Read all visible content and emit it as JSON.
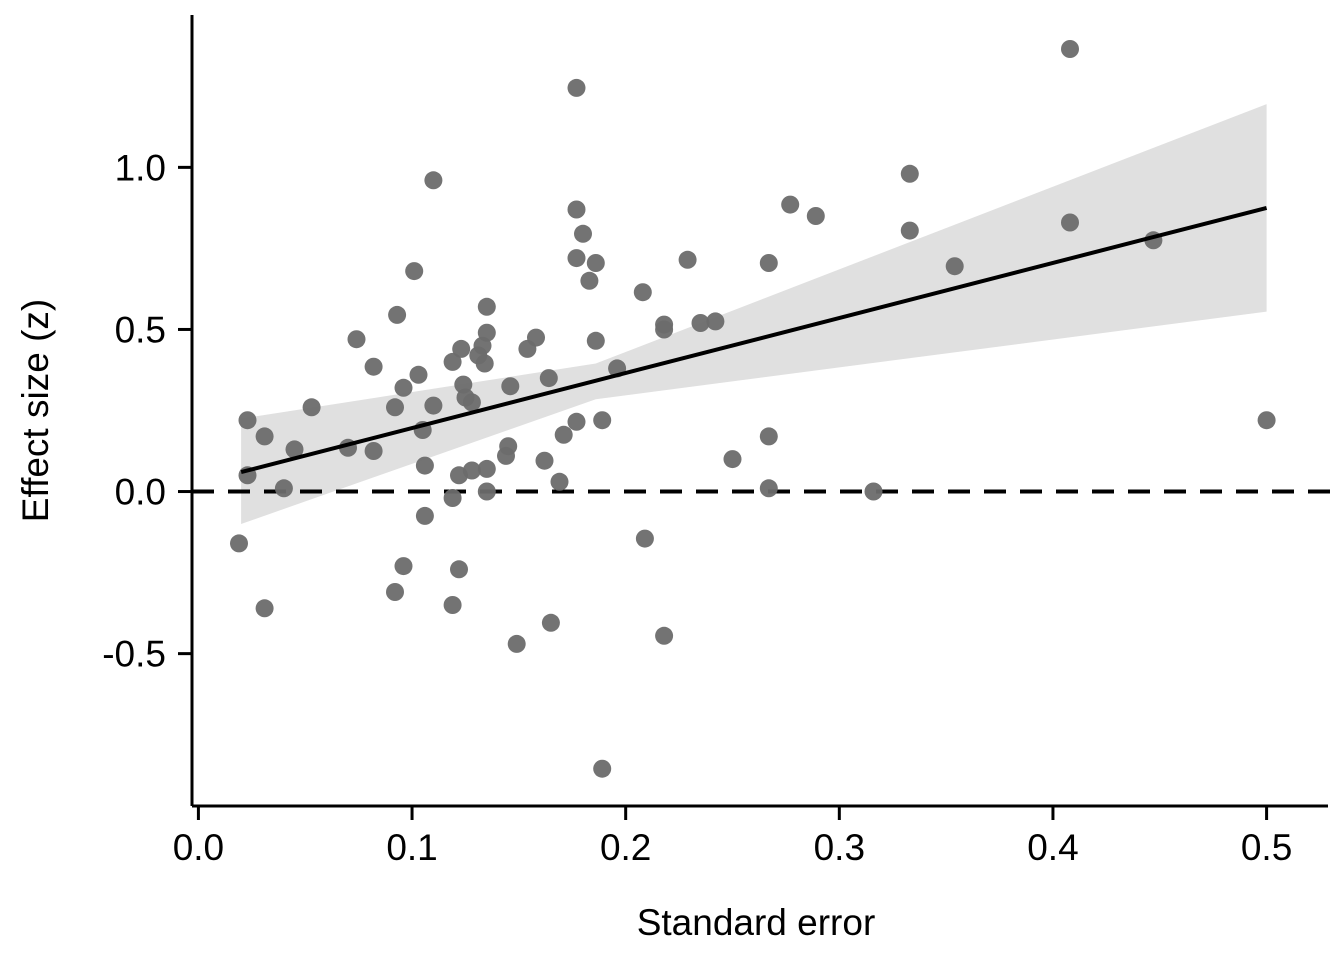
{
  "chart_data": {
    "type": "scatter",
    "title": "",
    "xlabel": "Standard error",
    "ylabel": "Effect size (z)",
    "xlim": [
      -0.003,
      0.525
    ],
    "ylim": [
      -0.97,
      1.47
    ],
    "xticks": [
      {
        "value": 0.0,
        "label": "0.0"
      },
      {
        "value": 0.1,
        "label": "0.1"
      },
      {
        "value": 0.2,
        "label": "0.2"
      },
      {
        "value": 0.3,
        "label": "0.3"
      },
      {
        "value": 0.4,
        "label": "0.4"
      },
      {
        "value": 0.5,
        "label": "0.5"
      }
    ],
    "yticks": [
      {
        "value": -0.5,
        "label": "-0.5"
      },
      {
        "value": 0.0,
        "label": "0.0"
      },
      {
        "value": 0.5,
        "label": "0.5"
      },
      {
        "value": 1.0,
        "label": "1.0"
      }
    ],
    "grid": false,
    "reference_line": {
      "y": 0.0,
      "style": "dashed",
      "color": "#000000"
    },
    "regression_line": {
      "x": [
        0.02,
        0.5
      ],
      "y": [
        0.06,
        0.875
      ],
      "color": "#000000"
    },
    "confidence_band": {
      "color": "#e0e0e0",
      "x": [
        0.02,
        0.5
      ],
      "lower": [
        -0.1,
        0.555
      ],
      "upper": [
        0.225,
        1.195
      ],
      "x_mid": 0.186,
      "lower_mid": 0.285,
      "upper_mid": 0.395
    },
    "point_color": "#6b6b6b",
    "points": [
      {
        "x": 0.019,
        "y": -0.16
      },
      {
        "x": 0.023,
        "y": 0.22
      },
      {
        "x": 0.023,
        "y": 0.05
      },
      {
        "x": 0.031,
        "y": 0.17
      },
      {
        "x": 0.031,
        "y": -0.36
      },
      {
        "x": 0.04,
        "y": 0.01
      },
      {
        "x": 0.045,
        "y": 0.13
      },
      {
        "x": 0.053,
        "y": 0.26
      },
      {
        "x": 0.07,
        "y": 0.135
      },
      {
        "x": 0.074,
        "y": 0.47
      },
      {
        "x": 0.082,
        "y": 0.125
      },
      {
        "x": 0.082,
        "y": 0.385
      },
      {
        "x": 0.092,
        "y": 0.26
      },
      {
        "x": 0.093,
        "y": 0.545
      },
      {
        "x": 0.092,
        "y": -0.31
      },
      {
        "x": 0.096,
        "y": 0.32
      },
      {
        "x": 0.096,
        "y": -0.23
      },
      {
        "x": 0.101,
        "y": 0.68
      },
      {
        "x": 0.103,
        "y": 0.36
      },
      {
        "x": 0.105,
        "y": 0.19
      },
      {
        "x": 0.106,
        "y": 0.08
      },
      {
        "x": 0.106,
        "y": -0.075
      },
      {
        "x": 0.11,
        "y": 0.265
      },
      {
        "x": 0.11,
        "y": 0.96
      },
      {
        "x": 0.119,
        "y": 0.4
      },
      {
        "x": 0.119,
        "y": -0.02
      },
      {
        "x": 0.119,
        "y": -0.35
      },
      {
        "x": 0.122,
        "y": 0.05
      },
      {
        "x": 0.122,
        "y": -0.24
      },
      {
        "x": 0.123,
        "y": 0.44
      },
      {
        "x": 0.124,
        "y": 0.33
      },
      {
        "x": 0.125,
        "y": 0.29
      },
      {
        "x": 0.128,
        "y": 0.275
      },
      {
        "x": 0.128,
        "y": 0.065
      },
      {
        "x": 0.131,
        "y": 0.42
      },
      {
        "x": 0.133,
        "y": 0.45
      },
      {
        "x": 0.134,
        "y": 0.395
      },
      {
        "x": 0.135,
        "y": 0.57
      },
      {
        "x": 0.135,
        "y": 0.49
      },
      {
        "x": 0.135,
        "y": 0.07
      },
      {
        "x": 0.135,
        "y": 0.0
      },
      {
        "x": 0.144,
        "y": 0.11
      },
      {
        "x": 0.145,
        "y": 0.14
      },
      {
        "x": 0.146,
        "y": 0.325
      },
      {
        "x": 0.149,
        "y": -0.47
      },
      {
        "x": 0.154,
        "y": 0.44
      },
      {
        "x": 0.158,
        "y": 0.475
      },
      {
        "x": 0.162,
        "y": 0.095
      },
      {
        "x": 0.164,
        "y": 0.35
      },
      {
        "x": 0.165,
        "y": -0.405
      },
      {
        "x": 0.169,
        "y": 0.03
      },
      {
        "x": 0.171,
        "y": 0.175
      },
      {
        "x": 0.177,
        "y": 0.215
      },
      {
        "x": 0.177,
        "y": 0.72
      },
      {
        "x": 0.177,
        "y": 0.87
      },
      {
        "x": 0.177,
        "y": 1.245
      },
      {
        "x": 0.18,
        "y": 0.795
      },
      {
        "x": 0.183,
        "y": 0.65
      },
      {
        "x": 0.186,
        "y": 0.465
      },
      {
        "x": 0.186,
        "y": 0.705
      },
      {
        "x": 0.189,
        "y": 0.22
      },
      {
        "x": 0.189,
        "y": -0.855
      },
      {
        "x": 0.196,
        "y": 0.38
      },
      {
        "x": 0.208,
        "y": 0.615
      },
      {
        "x": 0.209,
        "y": -0.145
      },
      {
        "x": 0.218,
        "y": 0.515
      },
      {
        "x": 0.218,
        "y": 0.5
      },
      {
        "x": 0.218,
        "y": -0.445
      },
      {
        "x": 0.229,
        "y": 0.715
      },
      {
        "x": 0.235,
        "y": 0.52
      },
      {
        "x": 0.242,
        "y": 0.525
      },
      {
        "x": 0.25,
        "y": 0.1
      },
      {
        "x": 0.267,
        "y": 0.705
      },
      {
        "x": 0.267,
        "y": 0.17
      },
      {
        "x": 0.267,
        "y": 0.01
      },
      {
        "x": 0.277,
        "y": 0.885
      },
      {
        "x": 0.289,
        "y": 0.85
      },
      {
        "x": 0.316,
        "y": 0.0
      },
      {
        "x": 0.333,
        "y": 0.98
      },
      {
        "x": 0.333,
        "y": 0.805
      },
      {
        "x": 0.354,
        "y": 0.695
      },
      {
        "x": 0.408,
        "y": 1.365
      },
      {
        "x": 0.408,
        "y": 0.83
      },
      {
        "x": 0.447,
        "y": 0.775
      },
      {
        "x": 0.5,
        "y": 0.22
      }
    ]
  }
}
